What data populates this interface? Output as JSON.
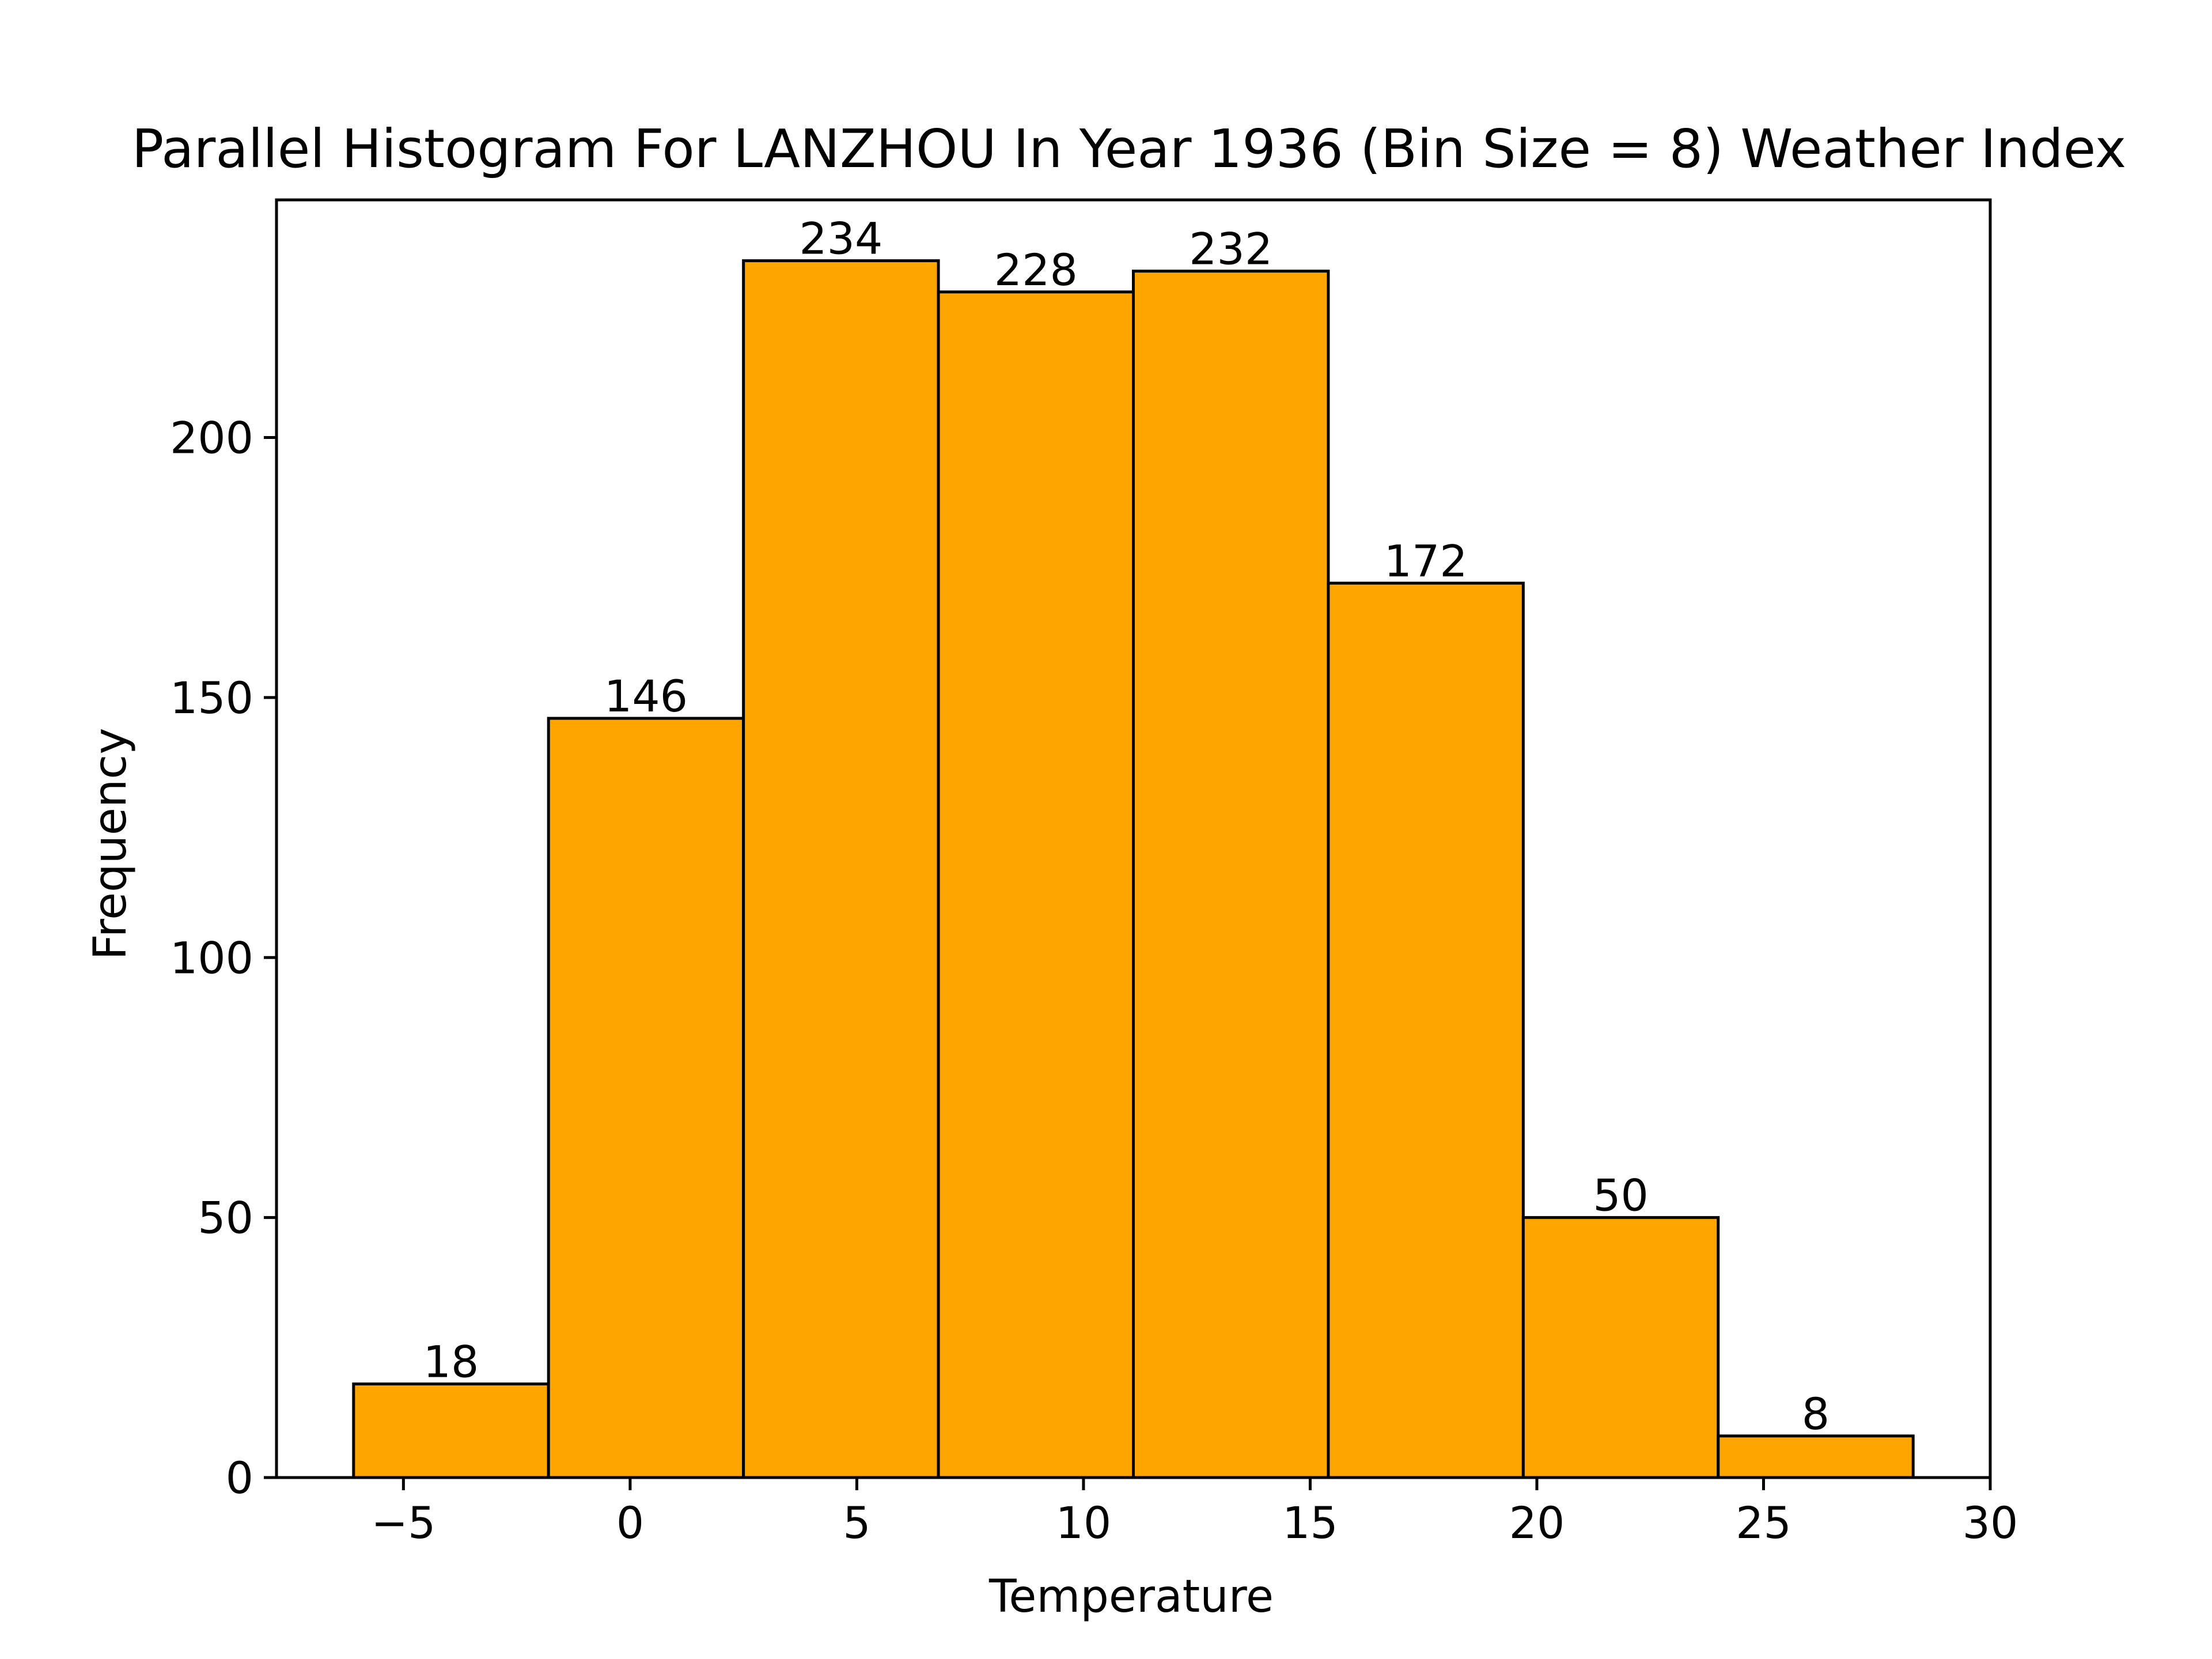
{
  "chart_data": {
    "type": "bar",
    "title": "Parallel Histogram For LANZHOU In Year 1936 (Bin Size = 8) Weather Index",
    "xlabel": "Temperature",
    "ylabel": "Frequency",
    "bins": [
      {
        "x0": -6.1,
        "x1": -1.8,
        "value": 18
      },
      {
        "x0": -1.8,
        "x1": 2.5,
        "value": 146
      },
      {
        "x0": 2.5,
        "x1": 6.8,
        "value": 234
      },
      {
        "x0": 6.8,
        "x1": 11.1,
        "value": 228
      },
      {
        "x0": 11.1,
        "x1": 15.4,
        "value": 232
      },
      {
        "x0": 15.4,
        "x1": 19.7,
        "value": 172
      },
      {
        "x0": 19.7,
        "x1": 24.0,
        "value": 50
      },
      {
        "x0": 24.0,
        "x1": 28.3,
        "value": 8
      }
    ],
    "xlim": [
      -7.8,
      30
    ],
    "ylim": [
      0,
      245.7
    ],
    "xticks": [
      -5,
      0,
      5,
      10,
      15,
      20,
      25,
      30
    ],
    "xtick_labels": [
      "−5",
      "0",
      "5",
      "10",
      "15",
      "20",
      "25",
      "30"
    ],
    "yticks": [
      0,
      50,
      100,
      150,
      200
    ],
    "ytick_labels": [
      "0",
      "50",
      "100",
      "150",
      "200"
    ],
    "grid": false,
    "legend": false,
    "colors": {
      "bar_fill": "#FFA500",
      "bar_edge": "#000000",
      "axes": "#000000",
      "background": "#FFFFFF"
    }
  }
}
